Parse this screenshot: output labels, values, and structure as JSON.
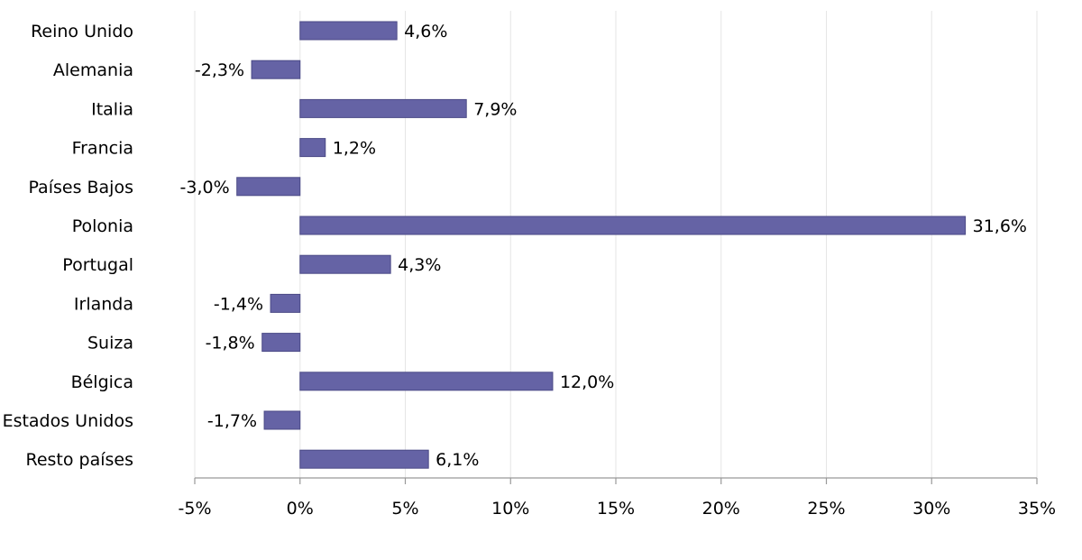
{
  "chart_data": {
    "type": "bar",
    "orientation": "horizontal",
    "categories": [
      "Reino Unido",
      "Alemania",
      "Italia",
      "Francia",
      "Países Bajos",
      "Polonia",
      "Portugal",
      "Irlanda",
      "Suiza",
      "Bélgica",
      "Estados Unidos",
      "Resto países"
    ],
    "series": [
      {
        "values": [
          4.6,
          -2.3,
          7.9,
          1.2,
          -3.0,
          31.6,
          4.3,
          -1.4,
          -1.8,
          12.0,
          -1.7,
          6.1
        ],
        "labels": [
          "4,6%",
          "-2,3%",
          "7,9%",
          "1,2%",
          "-3,0%",
          "31,6%",
          "4,3%",
          "-1,4%",
          "-1,8%",
          "12,0%",
          "-1,7%",
          "6,1%"
        ]
      }
    ],
    "x_ticks": [
      -5,
      0,
      5,
      10,
      15,
      20,
      25,
      30,
      35
    ],
    "x_tick_labels": [
      "-5%",
      "0%",
      "5%",
      "10%",
      "15%",
      "20%",
      "25%",
      "30%",
      "35%"
    ],
    "xlim": [
      -5,
      35
    ],
    "title": "",
    "xlabel": "",
    "ylabel": "",
    "grid": "vertical",
    "legend": "none",
    "bar_color": "#6563a5",
    "bar_border_color": "#4b4a86",
    "grid_color": "#e6e6e6",
    "axis_color": "#999999"
  }
}
